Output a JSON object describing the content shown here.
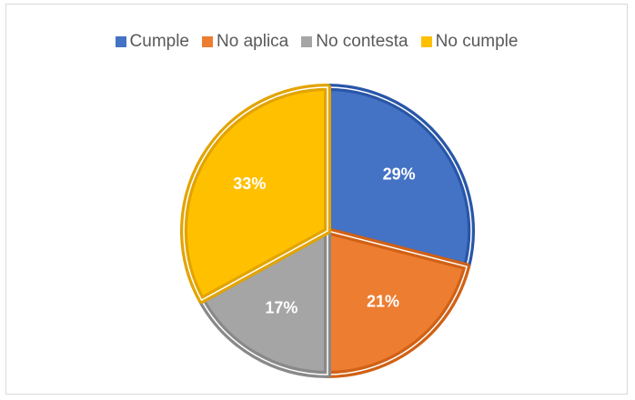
{
  "chart_data": {
    "type": "pie",
    "title": "",
    "categories": [
      "Cumple",
      "No aplica",
      "No contesta",
      "No cumple"
    ],
    "values": [
      29,
      21,
      17,
      33
    ],
    "data_labels": [
      "29%",
      "21%",
      "17%",
      "33%"
    ],
    "colors": [
      "#4472C4",
      "#ED7D31",
      "#A5A5A5",
      "#FFC000"
    ],
    "legend_position": "top"
  },
  "legend": [
    {
      "label": "Cumple",
      "color": "#4472C4"
    },
    {
      "label": "No aplica",
      "color": "#ED7D31"
    },
    {
      "label": "No contesta",
      "color": "#A5A5A5"
    },
    {
      "label": "No cumple",
      "color": "#FFC000"
    }
  ]
}
